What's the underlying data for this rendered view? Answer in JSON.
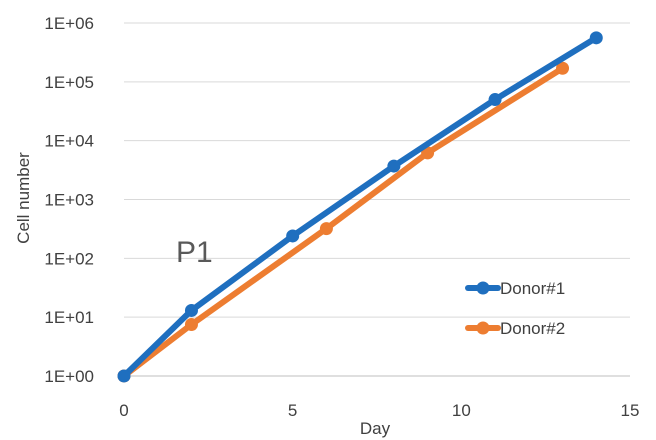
{
  "chart_data": {
    "type": "line",
    "yscale": "log",
    "xlabel": "Day",
    "ylabel": "Cell number",
    "xlim": [
      0,
      15
    ],
    "ylim": [
      1,
      1000000
    ],
    "xticks": [
      0,
      5,
      10,
      15
    ],
    "yticks": [
      1,
      10,
      100,
      1000,
      10000,
      100000,
      1000000
    ],
    "xtick_labels": [
      "0",
      "5",
      "10",
      "15"
    ],
    "ytick_labels": [
      "1E+00",
      "1E+01",
      "1E+02",
      "1E+03",
      "1E+04",
      "1E+05",
      "1E+06"
    ],
    "grid": "horizontal",
    "legend_position": "right",
    "annotation": "P1",
    "series": [
      {
        "name": "Donor#1",
        "color": "#1F6FBF",
        "x": [
          0,
          2,
          5,
          8,
          11,
          14
        ],
        "y": [
          1,
          13,
          240,
          3700,
          50000,
          560000
        ]
      },
      {
        "name": "Donor#2",
        "color": "#ED7D31",
        "x": [
          0,
          2,
          6,
          9,
          13
        ],
        "y": [
          1,
          7.5,
          320,
          6200,
          170000
        ]
      }
    ]
  }
}
